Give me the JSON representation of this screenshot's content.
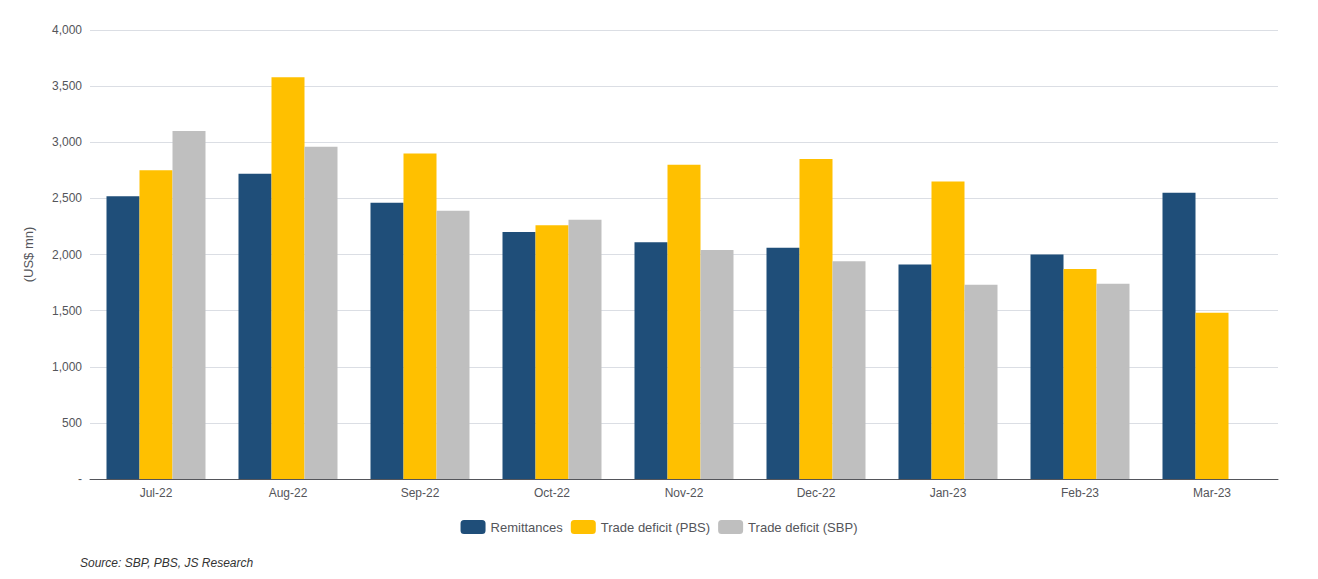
{
  "chart_data": {
    "type": "bar",
    "ylabel": "(US$ mn)",
    "categories": [
      "Jul-22",
      "Aug-22",
      "Sep-22",
      "Oct-22",
      "Nov-22",
      "Dec-22",
      "Jan-23",
      "Feb-23",
      "Mar-23"
    ],
    "series": [
      {
        "name": "Remittances",
        "color": "#1F4E79",
        "values": [
          2520,
          2720,
          2460,
          2200,
          2110,
          2060,
          1910,
          2000,
          2550
        ]
      },
      {
        "name": "Trade deficit (PBS)",
        "color": "#FFC000",
        "values": [
          2750,
          3580,
          2900,
          2260,
          2800,
          2850,
          2650,
          1870,
          1480
        ]
      },
      {
        "name": "Trade deficit (SBP)",
        "color": "#BFBFBF",
        "values": [
          3100,
          2960,
          2390,
          2310,
          2040,
          1940,
          1730,
          1740,
          0
        ]
      }
    ],
    "ylim": [
      0,
      4000
    ],
    "yticks": [
      {
        "value": 0,
        "label": "-"
      },
      500,
      {
        "value": 1000,
        "label": "1,000"
      },
      {
        "value": 1500,
        "label": "1,500"
      },
      {
        "value": 2000,
        "label": "2,000"
      },
      {
        "value": 2500,
        "label": "2,500"
      },
      {
        "value": 3000,
        "label": "3,000"
      },
      {
        "value": 3500,
        "label": "3,500"
      },
      {
        "value": 4000,
        "label": "4,000"
      }
    ],
    "grid": true,
    "legend": "bottom",
    "annotations": [
      "Source: SBP, PBS, JS Research"
    ]
  }
}
